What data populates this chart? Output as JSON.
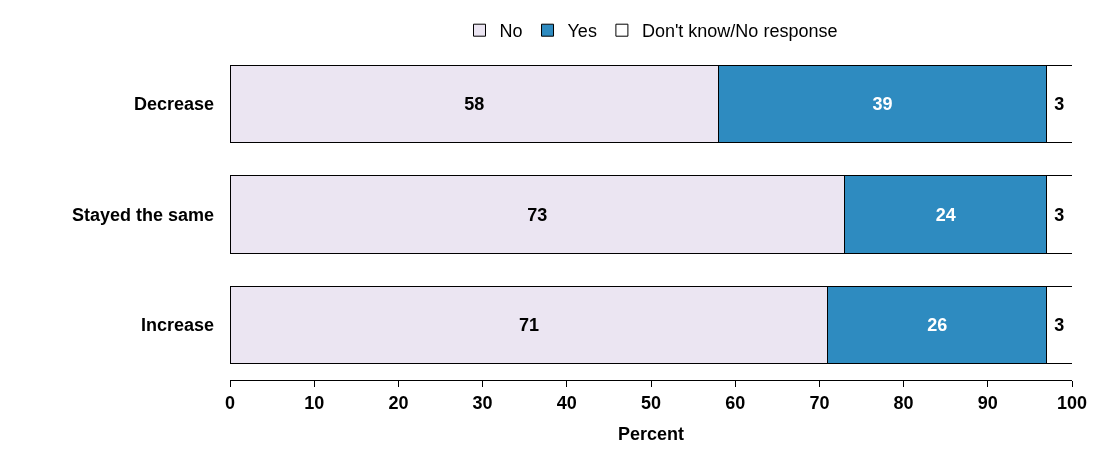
{
  "chart_data": {
    "type": "bar",
    "orientation": "horizontal",
    "stacked": true,
    "xlabel": "Percent",
    "categories": [
      "Decrease",
      "Stayed the same",
      "Increase"
    ],
    "series": [
      {
        "name": "No",
        "color": "#ebe5f2",
        "values": [
          58,
          73,
          71
        ]
      },
      {
        "name": "Yes",
        "color": "#2e8bc0",
        "values": [
          39,
          24,
          26
        ]
      },
      {
        "name": "Don't know/No response",
        "color": "#ffffff",
        "values": [
          3,
          3,
          3
        ]
      }
    ],
    "xlim": [
      0,
      100
    ],
    "xticks": [
      0,
      10,
      20,
      30,
      40,
      50,
      60,
      70,
      80,
      90,
      100
    ],
    "data_labels": true,
    "legend": "top"
  }
}
